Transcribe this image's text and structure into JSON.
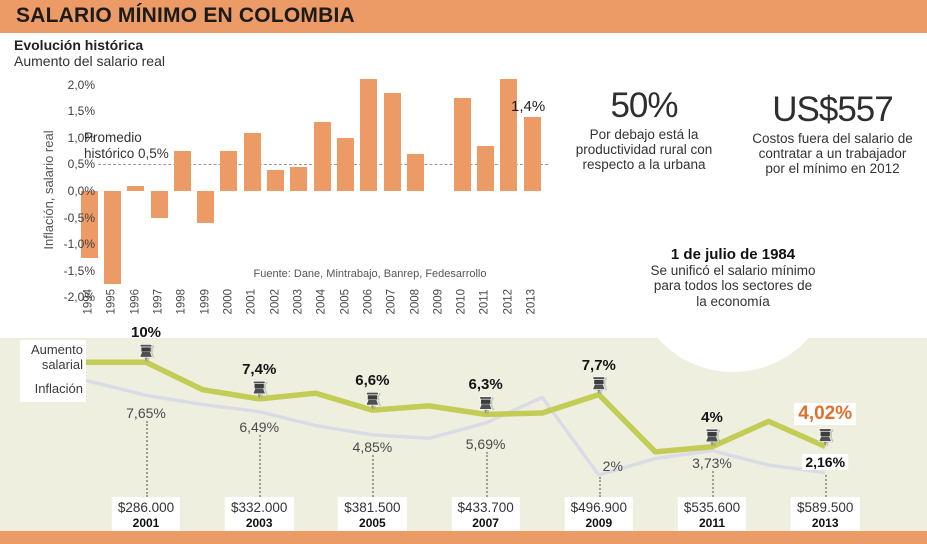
{
  "header": {
    "title": "SALARIO MÍNIMO EN COLOMBIA"
  },
  "intro": {
    "title": "Evolución histórica",
    "subtitle": "Aumento del salario real"
  },
  "stats": [
    {
      "value": "50%",
      "desc": "Por debajo está la productividad rural con respecto a la urbana"
    },
    {
      "value": "US$557",
      "desc": "Costos fuera del salario de contratar a un trabajador por el mínimo en 2012"
    }
  ],
  "callout": {
    "title": "1 de julio de 1984",
    "desc": "Se unificó el salario mínimo para todos los sectores de la economía"
  },
  "colors": {
    "accent_orange": "#EC9A66",
    "highlight_orange": "#E2702D",
    "salary_line_green": "#C3CC55",
    "inflation_line_gray": "#DBDBE5",
    "band_beige": "#EFEFE0"
  },
  "chart_data": [
    {
      "type": "bar",
      "title": "Evolución histórica",
      "subtitle": "Aumento del salario real",
      "ylabel": "Inflación, salario real",
      "categories": [
        "1994",
        "1995",
        "1996",
        "1997",
        "1998",
        "1999",
        "2000",
        "2001",
        "2002",
        "2003",
        "2004",
        "2005",
        "2006",
        "2007",
        "2008",
        "2009",
        "2010",
        "2011",
        "2012",
        "2013"
      ],
      "values": [
        -1.25,
        -1.75,
        0.1,
        -0.5,
        0.75,
        -0.6,
        0.75,
        1.1,
        0.4,
        0.45,
        1.3,
        1.0,
        2.1,
        1.85,
        0.7,
        0,
        1.75,
        0.85,
        2.1,
        1.4
      ],
      "ylim": [
        -2.0,
        2.0
      ],
      "grid": false,
      "ytick_labels": [
        "2,0%",
        "1,5%",
        "1,0%",
        "0,5%",
        "0,0%",
        "-0,5%",
        "-1,0%",
        "-1,5%",
        "-2,0%"
      ],
      "ytick_values": [
        2,
        1.5,
        1,
        0.5,
        0,
        -0.5,
        -1,
        -1.5,
        -2
      ],
      "reference_line": {
        "value": 0.5,
        "label": "Promedio histórico 0,5%"
      },
      "annotation": {
        "text": "1,4%",
        "category": "2013"
      },
      "source": "Fuente: Dane, Mintrabajo, Banrep, Fedesarrollo",
      "bar_color": "#EC9A66"
    },
    {
      "type": "line",
      "x": [
        2001,
        2002,
        2003,
        2004,
        2005,
        2006,
        2007,
        2008,
        2009,
        2010,
        2011,
        2012,
        2013
      ],
      "series": [
        {
          "name": "Aumento salarial",
          "color": "#C3CC55",
          "values": [
            10,
            8.05,
            7.4,
            7.8,
            6.6,
            6.9,
            6.3,
            6.4,
            7.7,
            3.64,
            4.0,
            5.8,
            4.02
          ]
        },
        {
          "name": "Inflación",
          "color": "#DBDBE5",
          "values": [
            7.65,
            7.0,
            6.49,
            5.5,
            4.85,
            4.6,
            5.69,
            7.5,
            2.0,
            3.17,
            3.73,
            2.7,
            2.16
          ]
        }
      ],
      "markers": [
        {
          "year": "2001",
          "increase_label": "10%",
          "inflation_label": "7,65%",
          "salary": "$286.000",
          "highlight": false
        },
        {
          "year": "2003",
          "increase_label": "7,4%",
          "inflation_label": "6,49%",
          "salary": "$332.000",
          "highlight": false
        },
        {
          "year": "2005",
          "increase_label": "6,6%",
          "inflation_label": "4,85%",
          "salary": "$381.500",
          "highlight": false
        },
        {
          "year": "2007",
          "increase_label": "6,3%",
          "inflation_label": "5,69%",
          "salary": "$433.700",
          "highlight": false
        },
        {
          "year": "2009",
          "increase_label": "7,7%",
          "inflation_label": "2%",
          "salary": "$496.900",
          "highlight": false
        },
        {
          "year": "2011",
          "increase_label": "4%",
          "inflation_label": "3,73%",
          "salary": "$535.600",
          "highlight": false
        },
        {
          "year": "2013",
          "increase_label": "4,02%",
          "inflation_label": "2,16%",
          "salary": "$589.500",
          "highlight": true
        }
      ]
    }
  ]
}
